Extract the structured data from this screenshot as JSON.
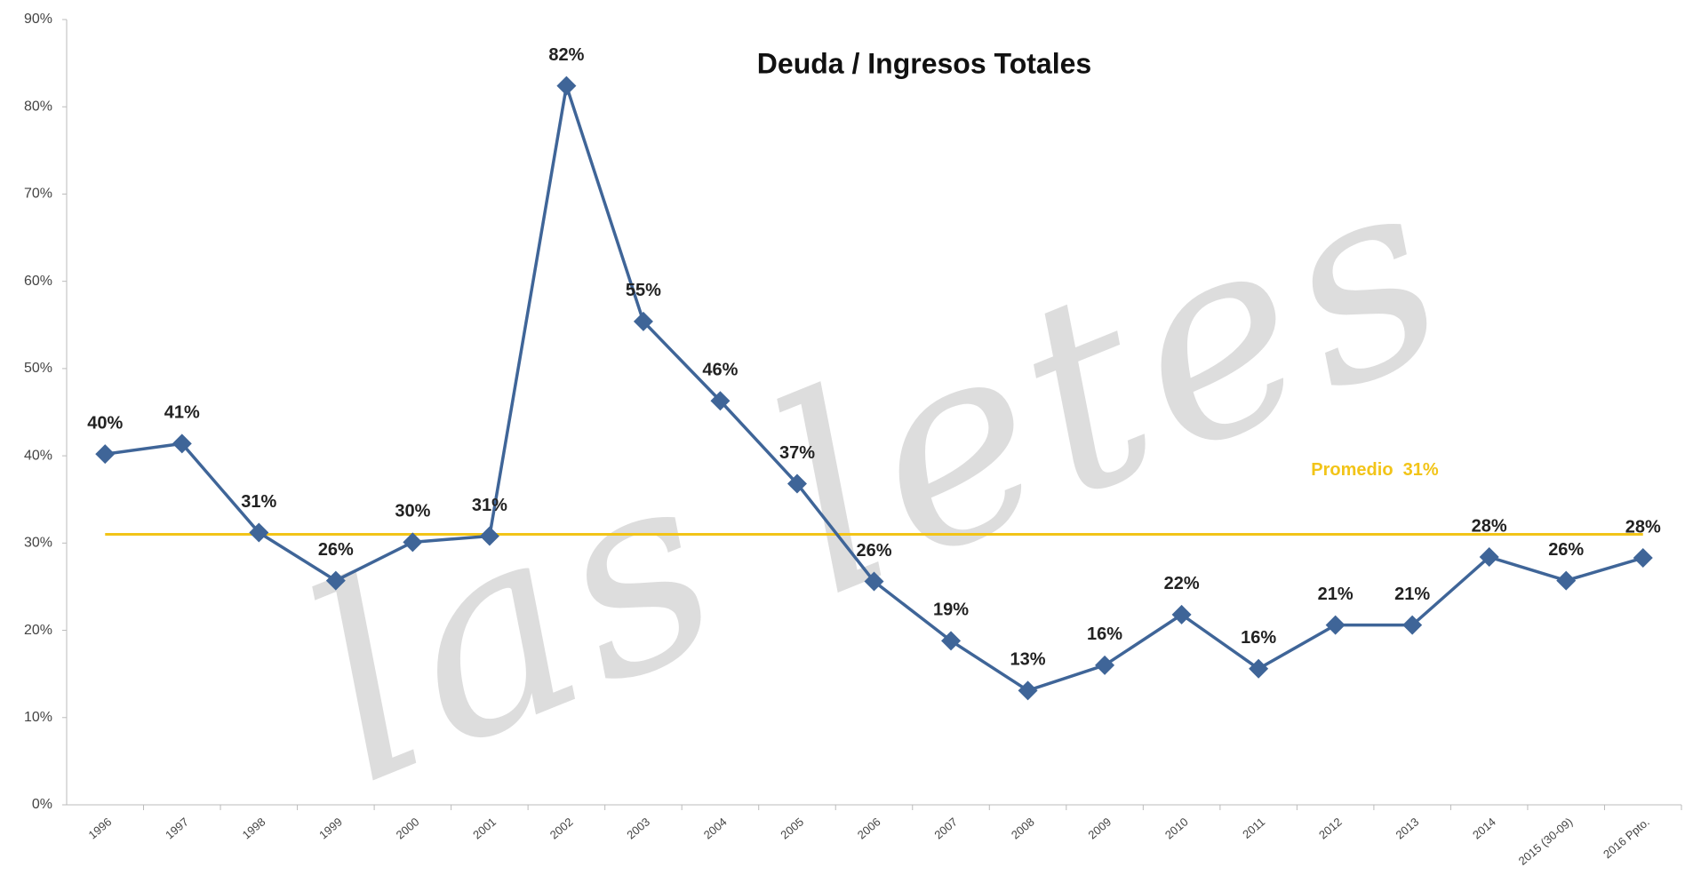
{
  "chart_data": {
    "type": "line",
    "title": "Deuda / Ingresos Totales",
    "watermark": "las letes",
    "categories": [
      "1996",
      "1997",
      "1998",
      "1999",
      "2000",
      "2001",
      "2002",
      "2003",
      "2004",
      "2005",
      "2006",
      "2007",
      "2008",
      "2009",
      "2010",
      "2011",
      "2012",
      "2013",
      "2014",
      "2015 (30-09)",
      "2016 Ppto."
    ],
    "series": [
      {
        "name": "Deuda / Ingresos Totales",
        "color": "#3f6598",
        "values": [
          40.2,
          41.4,
          31.2,
          25.7,
          30.1,
          30.8,
          82.4,
          55.4,
          46.3,
          36.8,
          25.6,
          18.8,
          13.1,
          16.0,
          21.8,
          15.6,
          20.6,
          20.6,
          28.4,
          25.7,
          28.3
        ],
        "value_labels": [
          "40%",
          "41%",
          "31%",
          "26%",
          "30%",
          "31%",
          "82%",
          "55%",
          "46%",
          "37%",
          "26%",
          "19%",
          "13%",
          "16%",
          "22%",
          "16%",
          "21%",
          "21%",
          "28%",
          "26%",
          "28%"
        ]
      }
    ],
    "average": {
      "value": 31,
      "label": "Promedio  31%",
      "color": "#f2c418"
    },
    "ylim": [
      0,
      90
    ],
    "yticks": [
      {
        "value": 0,
        "label": "0%"
      },
      {
        "value": 10,
        "label": "10%"
      },
      {
        "value": 20,
        "label": "20%"
      },
      {
        "value": 30,
        "label": "30%"
      },
      {
        "value": 40,
        "label": "40%"
      },
      {
        "value": 50,
        "label": "50%"
      },
      {
        "value": 60,
        "label": "60%"
      },
      {
        "value": 70,
        "label": "70%"
      },
      {
        "value": 80,
        "label": "80%"
      },
      {
        "value": 90,
        "label": "90%"
      }
    ],
    "grid": false
  }
}
